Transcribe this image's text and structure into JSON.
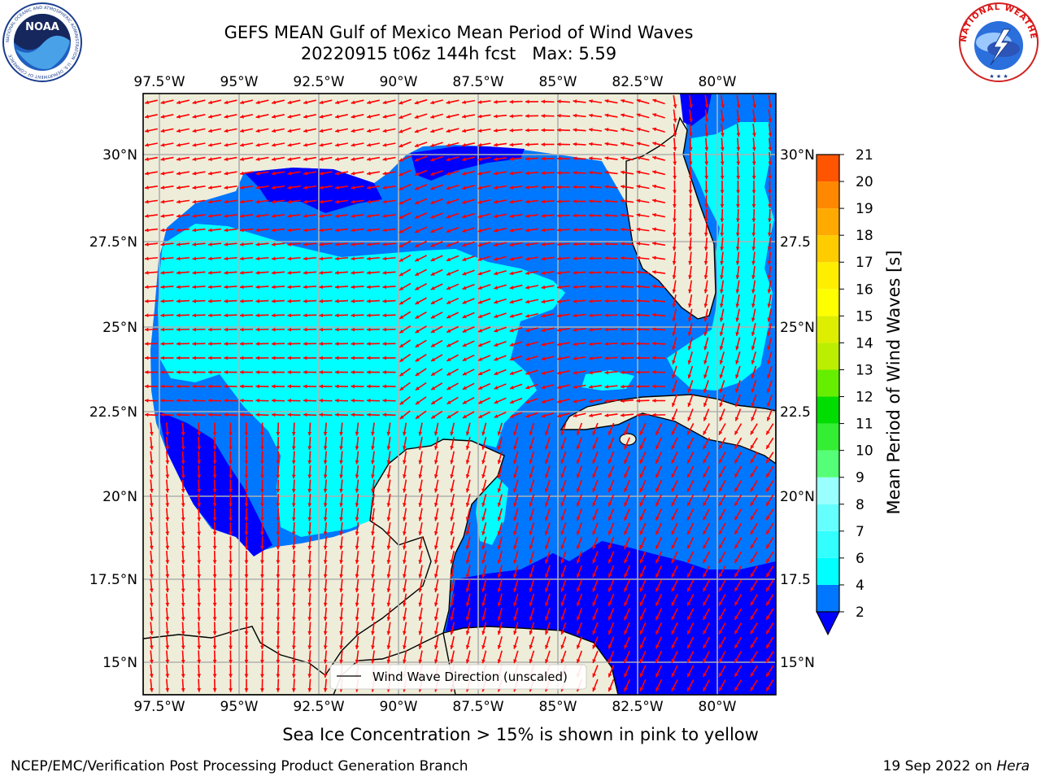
{
  "title": {
    "line1": "GEFS MEAN Gulf of Mexico Mean Period of Wind Waves",
    "line2": "20220915 t06z 144h fcst   Max: 5.59"
  },
  "logos": {
    "noaa_text": "NOAA",
    "noaa_ring_text": "NATIONAL OCEANIC AND ATMOSPHERIC ADMINISTRATION · U.S. DEPARTMENT OF COMMERCE",
    "nws_ring_text": "NATIONAL WEATHER SERVICE"
  },
  "map": {
    "lon_ticks": [
      "97.5°W",
      "95°W",
      "92.5°W",
      "90°W",
      "87.5°W",
      "85°W",
      "82.5°W",
      "80°W"
    ],
    "lat_ticks_left": [
      "30°N",
      "27.5°N",
      "25°N",
      "22.5°N",
      "20°N",
      "17.5°N",
      "15°N"
    ],
    "lat_ticks_right": [
      "30°N",
      "27.5",
      "25°N",
      "22.5",
      "20°N",
      "17.5",
      "15°N"
    ],
    "legend_label": "Wind Wave Direction (unscaled)",
    "arrow_color": "#ff0000",
    "land_color": "#eeedd9",
    "grid_color": "#b0b0b0"
  },
  "colorbar": {
    "label": "Mean Period of Wind Waves [s]",
    "ticks": [
      "21",
      "20",
      "19",
      "18",
      "17",
      "16",
      "15",
      "14",
      "13",
      "12",
      "11",
      "10",
      "9",
      "8",
      "7",
      "6",
      "4",
      "2"
    ],
    "levels": [
      2,
      4,
      6,
      7,
      8,
      9,
      10,
      11,
      12,
      13,
      14,
      15,
      16,
      17,
      18,
      19,
      20,
      21
    ],
    "colors": [
      "#0077ff",
      "#00ffff",
      "#33ffff",
      "#66ffff",
      "#99ffff",
      "#55ff77",
      "#33ee33",
      "#00dd00",
      "#66ee00",
      "#bbee00",
      "#ddee00",
      "#ffff00",
      "#ffee00",
      "#ffcc00",
      "#ffaa00",
      "#ff8800",
      "#ff5500",
      "#ff2200",
      "#ff0000"
    ],
    "extend_color": "#0000ff"
  },
  "footer": {
    "ice_note": "Sea Ice Concentration > 15% is shown in pink to yellow",
    "credit": "NCEP/EMC/Verification Post Processing Product Generation Branch",
    "date": "19 Sep 2022 on ",
    "host": "Hera"
  }
}
